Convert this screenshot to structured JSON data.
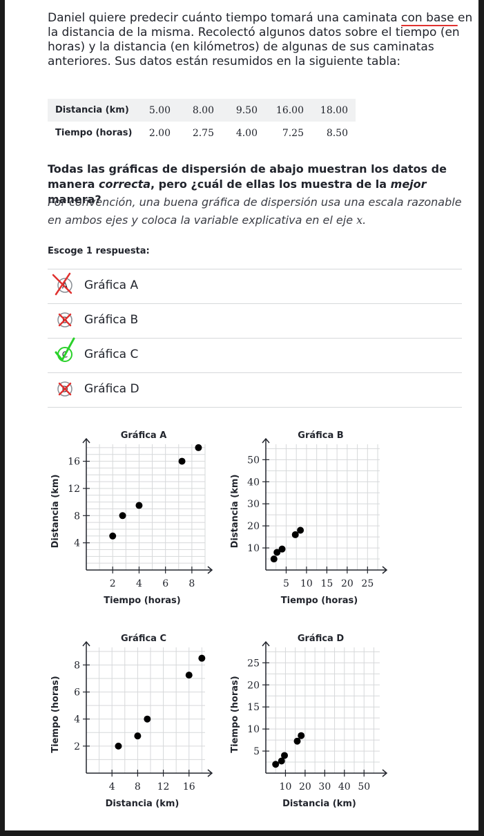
{
  "problem": {
    "part1": "Daniel quiere predecir cuánto tiempo tomará una caminata ",
    "underlined": "con base ",
    "part2": "en la distancia de la misma. Recolectó algunos datos sobre el tiempo (en horas) y la distancia (en kilómetros) de algunas de sus caminatas anteriores. Sus datos están resumidos en la siguiente tabla:"
  },
  "table": {
    "row1_label": "Distancia (km)",
    "row1": [
      "5.00",
      "8.00",
      "9.50",
      "16.00",
      "18.00"
    ],
    "row2_label": "Tiempo (horas)",
    "row2": [
      "2.00",
      "2.75",
      "4.00",
      "7.25",
      "8.50"
    ]
  },
  "question": {
    "q1": "Todas las gráficas de dispersión de abajo muestran los datos de manera ",
    "q2": "correcta",
    "q3": ", pero ¿cuál de ellas los muestra de la ",
    "q4": "mejor",
    "q5": " manera?",
    "hint": "Por convención, una buena gráfica de dispersión usa una escala razonable en ambos ejes y coloca la variable explicativa en el eje ",
    "hint_var": "x",
    "hint_end": "."
  },
  "prompt": "Escoge 1 respuesta:",
  "choices": [
    {
      "letter": "A",
      "label": "Gráfica A",
      "state": "crossed-red"
    },
    {
      "letter": "B",
      "label": "Gráfica B",
      "state": "crossed"
    },
    {
      "letter": "C",
      "label": "Gráfica C",
      "state": "checked"
    },
    {
      "letter": "D",
      "label": "Gráfica D",
      "state": "crossed"
    }
  ],
  "colors": {
    "text": "#21242c",
    "grid": "#d6d8da",
    "check": "#2ad12a",
    "cross": "#e0312f",
    "underline": "#e0312f"
  },
  "chart_data": [
    {
      "type": "scatter",
      "title": "Gráfica A",
      "xlabel": "Tiempo (horas)",
      "ylabel": "Distancia (km)",
      "xlim": [
        0,
        9
      ],
      "ylim": [
        0,
        18.5
      ],
      "xticks": [
        2,
        4,
        6,
        8
      ],
      "yticks": [
        4,
        8,
        12,
        16
      ],
      "points": [
        [
          2.0,
          5.0
        ],
        [
          2.75,
          8.0
        ],
        [
          4.0,
          9.5
        ],
        [
          7.25,
          16.0
        ],
        [
          8.5,
          18.0
        ]
      ]
    },
    {
      "type": "scatter",
      "title": "Gráfica B",
      "xlabel": "Tiempo (horas)",
      "ylabel": "Distancia (km)",
      "xlim": [
        0,
        28
      ],
      "ylim": [
        0,
        57
      ],
      "xticks": [
        5,
        10,
        15,
        20,
        25
      ],
      "yticks": [
        10,
        20,
        30,
        40,
        50
      ],
      "points": [
        [
          2.0,
          5.0
        ],
        [
          2.75,
          8.0
        ],
        [
          4.0,
          9.5
        ],
        [
          7.25,
          16.0
        ],
        [
          8.5,
          18.0
        ]
      ]
    },
    {
      "type": "scatter",
      "title": "Gráfica C",
      "xlabel": "Distancia (km)",
      "ylabel": "Tiempo (horas)",
      "xlim": [
        0,
        18.5
      ],
      "ylim": [
        0,
        9.3
      ],
      "xticks": [
        4,
        8,
        12,
        16
      ],
      "yticks": [
        2,
        4,
        6,
        8
      ],
      "points": [
        [
          5.0,
          2.0
        ],
        [
          8.0,
          2.75
        ],
        [
          9.5,
          4.0
        ],
        [
          16.0,
          7.25
        ],
        [
          18.0,
          8.5
        ]
      ]
    },
    {
      "type": "scatter",
      "title": "Gráfica D",
      "xlabel": "Distancia (km)",
      "ylabel": "Tiempo (horas)",
      "xlim": [
        0,
        58
      ],
      "ylim": [
        0,
        28.5
      ],
      "xticks": [
        10,
        20,
        30,
        40,
        50
      ],
      "yticks": [
        5,
        10,
        15,
        20,
        25
      ],
      "points": [
        [
          5.0,
          2.0
        ],
        [
          8.0,
          2.75
        ],
        [
          9.5,
          4.0
        ],
        [
          16.0,
          7.25
        ],
        [
          18.0,
          8.5
        ]
      ]
    }
  ]
}
